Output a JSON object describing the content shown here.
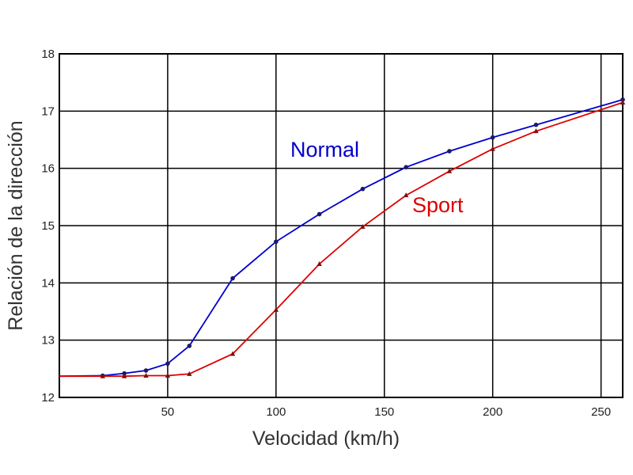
{
  "chart_data": {
    "type": "line",
    "title": "",
    "xlabel": "Velocidad (km/h)",
    "ylabel": "Relación de la dirección",
    "xlim": [
      0,
      260
    ],
    "ylim": [
      12,
      18
    ],
    "xticks": [
      50,
      100,
      150,
      200,
      250
    ],
    "yticks": [
      12,
      13,
      14,
      15,
      16,
      17,
      18
    ],
    "grid": true,
    "series": [
      {
        "name": "Normal",
        "color": "#0000cc",
        "marker": "circle",
        "x": [
          0,
          20,
          30,
          40,
          50,
          60,
          80,
          100,
          120,
          140,
          160,
          180,
          200,
          220,
          260
        ],
        "y": [
          12.37,
          12.38,
          12.42,
          12.47,
          12.59,
          12.9,
          14.08,
          14.72,
          15.2,
          15.64,
          16.02,
          16.3,
          16.54,
          16.76,
          17.2
        ]
      },
      {
        "name": "Sport",
        "color": "#dd0000",
        "marker": "triangle",
        "x": [
          0,
          20,
          30,
          40,
          50,
          60,
          80,
          100,
          120,
          140,
          160,
          180,
          200,
          220,
          260
        ],
        "y": [
          12.37,
          12.37,
          12.37,
          12.38,
          12.38,
          12.41,
          12.76,
          13.53,
          14.33,
          14.98,
          15.53,
          15.95,
          16.34,
          16.65,
          17.15
        ]
      }
    ]
  }
}
